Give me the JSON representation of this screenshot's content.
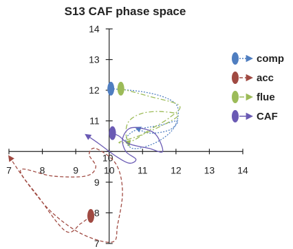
{
  "chart_data": {
    "type": "scatter",
    "title": "S13 CAF phase space",
    "xlabel": "",
    "ylabel": "",
    "xlim": [
      7,
      14
    ],
    "ylim": [
      7,
      14
    ],
    "axis_crossing": [
      10,
      10
    ],
    "x_ticks": [
      {
        "value": 7,
        "label": "7"
      },
      {
        "value": 8,
        "label": "8"
      },
      {
        "value": 9,
        "label": "9"
      },
      {
        "value": 10,
        "label": "10"
      },
      {
        "value": 11,
        "label": "11"
      },
      {
        "value": 12,
        "label": "12"
      },
      {
        "value": 13,
        "label": "13"
      },
      {
        "value": 14,
        "label": "14"
      }
    ],
    "y_ticks": [
      {
        "value": 7,
        "label": "7"
      },
      {
        "value": 8,
        "label": "8"
      },
      {
        "value": 9,
        "label": "9"
      },
      {
        "value": 10,
        "label": "10"
      },
      {
        "value": 11,
        "label": "11"
      },
      {
        "value": 12,
        "label": "12"
      },
      {
        "value": 13,
        "label": "13"
      },
      {
        "value": 14,
        "label": "14"
      }
    ],
    "grid": false,
    "legend_position": "right",
    "series": [
      {
        "name": "comp",
        "color": "#4f7ec0",
        "line_style": "dotted",
        "marker": {
          "x": 10.05,
          "y": 12.05
        },
        "path": [
          [
            10.05,
            12.05
          ],
          [
            11.0,
            11.95
          ],
          [
            11.7,
            11.75
          ],
          [
            12.05,
            11.45
          ],
          [
            12.0,
            10.9
          ],
          [
            11.7,
            10.5
          ],
          [
            11.2,
            10.2
          ],
          [
            10.7,
            10.1
          ],
          [
            10.5,
            10.4
          ],
          [
            10.8,
            10.7
          ],
          [
            11.5,
            10.85
          ],
          [
            12.05,
            11.0
          ],
          [
            11.8,
            10.7
          ],
          [
            11.2,
            10.6
          ],
          [
            10.8,
            10.78
          ]
        ],
        "arrow": true
      },
      {
        "name": "acc",
        "color": "#a04a42",
        "line_style": "dashed",
        "marker": {
          "x": 9.45,
          "y": 7.9
        },
        "path": [
          [
            9.45,
            7.9
          ],
          [
            9.15,
            7.65
          ],
          [
            8.7,
            7.4
          ],
          [
            7.9,
            8.5
          ],
          [
            7.35,
            9.4
          ],
          [
            8.3,
            9.2
          ],
          [
            9.3,
            9.2
          ],
          [
            9.6,
            9.5
          ],
          [
            9.4,
            9.9
          ],
          [
            9.6,
            10.1
          ],
          [
            10.2,
            9.6
          ],
          [
            10.4,
            8.7
          ],
          [
            10.25,
            7.6
          ],
          [
            10.1,
            7.05
          ],
          [
            9.2,
            7.3
          ],
          [
            8.3,
            8.0
          ],
          [
            7.6,
            8.9
          ],
          [
            7.0,
            9.85
          ]
        ],
        "arrow": true
      },
      {
        "name": "flue",
        "color": "#9cbb58",
        "line_style": "dash-dot",
        "marker": {
          "x": 10.35,
          "y": 12.05
        },
        "path": [
          [
            10.35,
            12.05
          ],
          [
            11.2,
            11.8
          ],
          [
            12.1,
            11.5
          ],
          [
            11.8,
            11.1
          ],
          [
            11.2,
            10.7
          ],
          [
            10.7,
            10.35
          ],
          [
            10.3,
            10.3
          ],
          [
            11.1,
            10.6
          ],
          [
            12.05,
            11.15
          ],
          [
            11.6,
            11.3
          ],
          [
            11.0,
            11.25
          ],
          [
            10.6,
            11.0
          ],
          [
            10.5,
            10.6
          ],
          [
            10.6,
            10.2
          ]
        ],
        "arrow": true
      },
      {
        "name": "CAF",
        "color": "#6a5ab4",
        "line_style": "solid",
        "marker": {
          "x": 10.1,
          "y": 10.6
        },
        "path": [
          [
            10.1,
            10.6
          ],
          [
            10.3,
            10.5
          ],
          [
            10.6,
            10.25
          ],
          [
            11.2,
            10.1
          ],
          [
            11.6,
            10.0
          ],
          [
            11.4,
            10.55
          ],
          [
            11.0,
            10.75
          ],
          [
            10.6,
            10.75
          ],
          [
            10.4,
            10.4
          ],
          [
            10.5,
            10.0
          ],
          [
            10.8,
            9.75
          ],
          [
            10.6,
            9.62
          ],
          [
            10.2,
            9.85
          ],
          [
            9.7,
            10.25
          ],
          [
            9.3,
            10.55
          ]
        ],
        "arrow": true
      }
    ]
  }
}
